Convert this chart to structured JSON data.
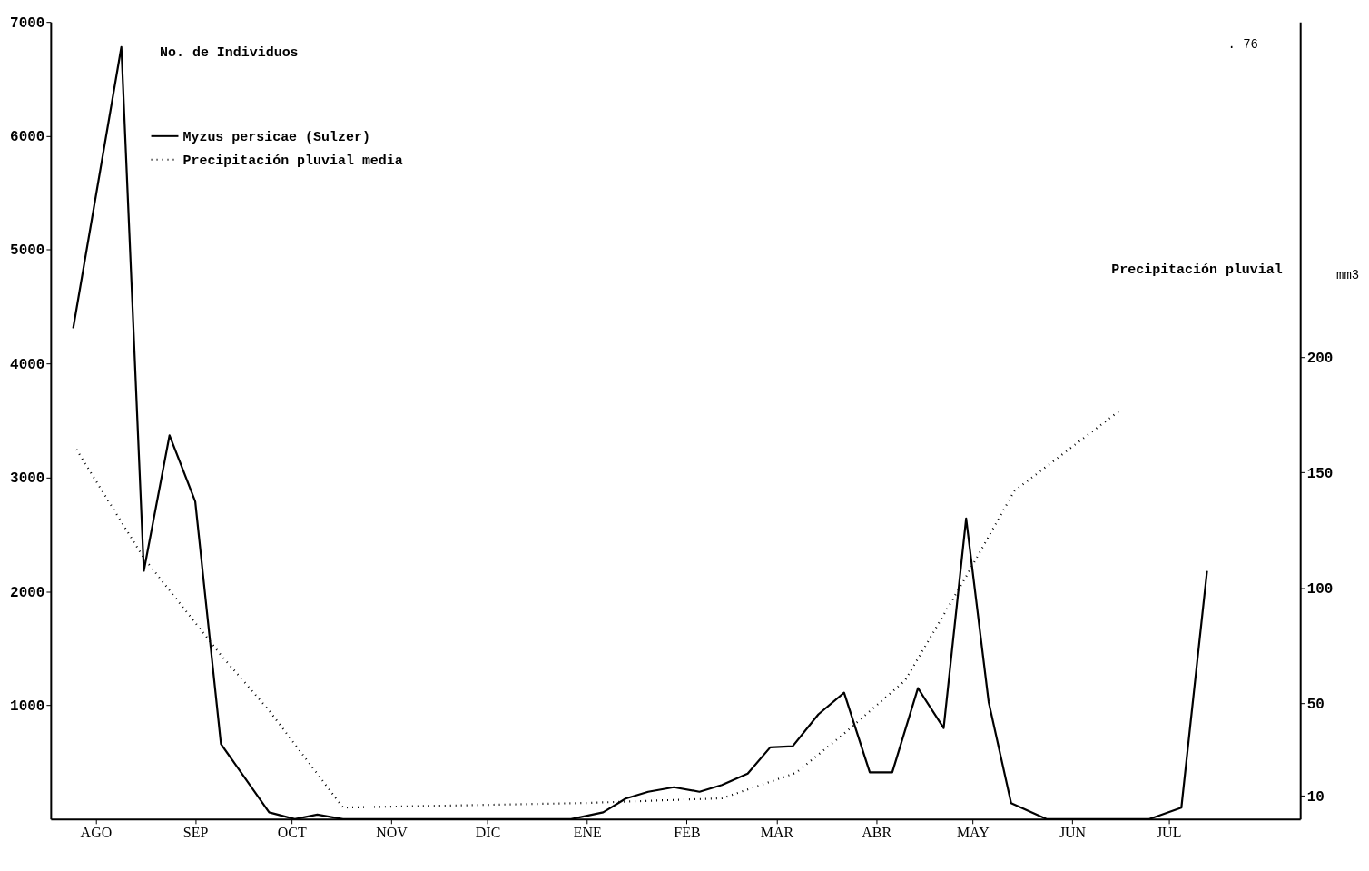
{
  "chart_data": {
    "type": "line",
    "ylabel": "No. de Individuos",
    "y2label": "Precipitación pluvial",
    "annotations": [
      "mm3",
      ". 76"
    ],
    "xlim": [
      "2000-08-01",
      "2001-08-25"
    ],
    "xticks": [
      {
        "value": "2000-08-15",
        "label": "AGO"
      },
      {
        "value": "2000-09-15",
        "label": "SEP"
      },
      {
        "value": "2000-10-15",
        "label": "OCT"
      },
      {
        "value": "2000-11-15",
        "label": "NOV"
      },
      {
        "value": "2000-12-15",
        "label": "DIC"
      },
      {
        "value": "2001-01-15",
        "label": "ENE"
      },
      {
        "value": "2001-02-15",
        "label": "FEB"
      },
      {
        "value": "2001-03-15",
        "label": "MAR"
      },
      {
        "value": "2001-04-15",
        "label": "ABR"
      },
      {
        "value": "2001-05-15",
        "label": "MAY"
      },
      {
        "value": "2001-06-15",
        "label": "JUN"
      },
      {
        "value": "2001-07-15",
        "label": "JUL"
      }
    ],
    "ylim": [
      0,
      7000
    ],
    "yticks": [
      1000,
      2000,
      3000,
      4000,
      5000,
      6000,
      7000
    ],
    "y2lim": [
      0,
      345
    ],
    "y2ticks": [
      10,
      50,
      100,
      150,
      200
    ],
    "grid": false,
    "legend": "top left",
    "marker": "none",
    "series": [
      {
        "name": "Myzus persicae (Sulzer)",
        "color": "#000000",
        "line_style": "solid",
        "x": [
          "2000-08-08",
          "2000-08-23",
          "2000-08-30",
          "2000-09-07",
          "2000-09-15",
          "2000-09-23",
          "2000-10-08",
          "2000-10-16",
          "2000-10-23",
          "2000-10-31",
          "2001-01-10",
          "2001-01-20",
          "2001-01-27",
          "2001-02-03",
          "2001-02-11",
          "2001-02-19",
          "2001-02-26",
          "2001-03-06",
          "2001-03-13",
          "2001-03-20",
          "2001-03-28",
          "2001-04-05",
          "2001-04-13",
          "2001-04-20",
          "2001-04-28",
          "2001-05-06",
          "2001-05-13",
          "2001-05-20",
          "2001-05-27",
          "2001-06-07",
          "2001-07-09",
          "2001-07-19",
          "2001-07-27"
        ],
        "values": [
          4310,
          6780,
          2180,
          3370,
          2790,
          660,
          60,
          0,
          40,
          0,
          0,
          60,
          180,
          240,
          280,
          240,
          300,
          400,
          630,
          640,
          920,
          1110,
          410,
          410,
          1150,
          800,
          2640,
          1030,
          140,
          0,
          0,
          100,
          2180
        ]
      },
      {
        "name": "Precipitación pluvial media",
        "color": "#000000",
        "line_style": "dotted",
        "axis": "y2",
        "x": [
          "2000-08-09",
          "2000-08-30",
          "2000-09-23",
          "2000-10-08",
          "2000-10-31",
          "2001-01-15",
          "2001-02-26",
          "2001-03-21",
          "2001-04-05",
          "2001-04-24",
          "2001-05-13",
          "2001-05-28",
          "2001-06-30"
        ],
        "values": [
          160,
          113,
          71,
          47,
          5,
          7,
          9,
          20,
          37,
          60,
          105,
          142,
          177
        ]
      }
    ]
  }
}
